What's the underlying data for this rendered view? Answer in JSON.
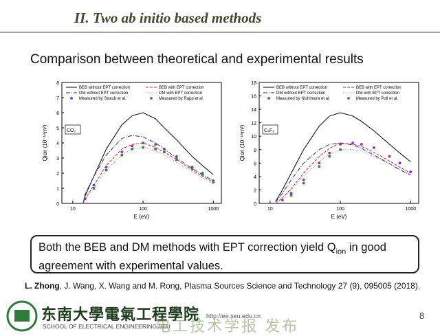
{
  "header": {
    "title": "II. Two ab initio based methods"
  },
  "subtitle": "Comparison between theoretical and experimental results",
  "chart_data": [
    {
      "type": "line",
      "ylabel": "Qion (10⁻¹⁶m²)",
      "xlabel": "E (eV)",
      "annotation": "CO₂",
      "xlim": [
        7,
        1300
      ],
      "xticks": [
        10,
        100,
        1000
      ],
      "xscale": "log",
      "ylim": [
        0,
        8
      ],
      "yticks": [
        0,
        1,
        2,
        3,
        4,
        5,
        6,
        7,
        8
      ],
      "series": [
        {
          "name": "BEB without EPT correction",
          "color": "#000000",
          "style": "solid",
          "x": [
            14,
            15,
            20,
            30,
            50,
            70,
            100,
            150,
            200,
            300,
            500,
            700,
            1000
          ],
          "values": [
            0,
            0.5,
            1.8,
            3.6,
            5.2,
            5.8,
            6.0,
            5.6,
            5.0,
            4.2,
            3.1,
            2.5,
            1.9
          ]
        },
        {
          "name": "BEB with EPT correction",
          "color": "#d62728",
          "style": "dashed",
          "x": [
            14,
            15,
            20,
            30,
            50,
            70,
            100,
            150,
            200,
            300,
            500,
            700,
            1000
          ],
          "values": [
            0,
            0.3,
            1.2,
            2.5,
            3.6,
            3.9,
            4.0,
            3.7,
            3.4,
            2.9,
            2.2,
            1.8,
            1.4
          ]
        },
        {
          "name": "DM without EPT correction",
          "color": "#1f2a7a",
          "style": "dash-dot",
          "x": [
            14,
            15,
            20,
            30,
            50,
            70,
            100,
            150,
            200,
            300,
            500,
            700,
            1000
          ],
          "values": [
            0,
            0.6,
            1.8,
            3.2,
            4.3,
            4.5,
            4.4,
            4.0,
            3.6,
            3.0,
            2.3,
            1.9,
            1.5
          ]
        },
        {
          "name": "DM with EPT correction",
          "color": "#d67ab8",
          "style": "dotted",
          "x": [
            14,
            15,
            20,
            30,
            50,
            70,
            100,
            150,
            200,
            300,
            500,
            700,
            1000
          ],
          "values": [
            0,
            0.3,
            1.0,
            2.2,
            3.2,
            3.6,
            3.7,
            3.5,
            3.2,
            2.7,
            2.1,
            1.7,
            1.3
          ]
        },
        {
          "name": "Measured by Straub et al.",
          "color": "#8a2be2",
          "style": "markers",
          "x": [
            15,
            20,
            30,
            50,
            70,
            100,
            150,
            200,
            300,
            500,
            700,
            1000
          ],
          "values": [
            0.3,
            1.2,
            2.4,
            3.4,
            3.8,
            4.0,
            3.9,
            3.6,
            3.1,
            2.4,
            2.0,
            1.5
          ]
        },
        {
          "name": "Measured by Rapp et al.",
          "color": "#2e8b2e",
          "style": "markers",
          "x": [
            20,
            30,
            50,
            70,
            100,
            150,
            200,
            300,
            500,
            700,
            1000
          ],
          "values": [
            1.0,
            2.2,
            3.2,
            3.6,
            3.7,
            3.6,
            3.4,
            2.9,
            2.3,
            1.9,
            1.4
          ]
        }
      ]
    },
    {
      "type": "line",
      "ylabel": "Qion (10⁻¹⁶m²)",
      "xlabel": "E (eV)",
      "annotation": "C₄F₈",
      "xlim": [
        7,
        1300
      ],
      "xticks": [
        10,
        100,
        1000
      ],
      "xscale": "log",
      "ylim": [
        0,
        18
      ],
      "yticks": [
        0,
        2,
        4,
        6,
        8,
        10,
        12,
        14,
        16,
        18
      ],
      "series": [
        {
          "name": "BEB without EPT correction",
          "color": "#000000",
          "style": "solid",
          "x": [
            12,
            15,
            20,
            30,
            50,
            70,
            100,
            150,
            200,
            300,
            500,
            700,
            1000
          ],
          "values": [
            0.3,
            2.0,
            4.5,
            8.0,
            11.5,
            13.0,
            13.5,
            13.0,
            12.2,
            10.8,
            8.8,
            7.5,
            6.2
          ]
        },
        {
          "name": "BEB with EPT correction",
          "color": "#d62728",
          "style": "dashed",
          "x": [
            12,
            15,
            20,
            30,
            50,
            70,
            100,
            150,
            200,
            300,
            500,
            700,
            1000
          ],
          "values": [
            0,
            0.8,
            2.2,
            4.5,
            7.0,
            8.2,
            9.0,
            8.8,
            8.5,
            7.6,
            6.3,
            5.4,
            4.5
          ]
        },
        {
          "name": "DM without EPT correction",
          "color": "#1f2a7a",
          "style": "dash-dot",
          "x": [
            12,
            15,
            20,
            30,
            50,
            70,
            100,
            150,
            200,
            300,
            500,
            700,
            1000
          ],
          "values": [
            0.2,
            1.5,
            3.5,
            6.0,
            8.0,
            8.8,
            9.0,
            8.7,
            8.2,
            7.2,
            5.9,
            5.0,
            4.2
          ]
        },
        {
          "name": "DM with EPT correction",
          "color": "#d67ab8",
          "style": "dotted",
          "x": [
            12,
            15,
            20,
            30,
            50,
            70,
            100,
            150,
            200,
            300,
            500,
            700,
            1000
          ],
          "values": [
            0,
            0.8,
            2.0,
            4.0,
            6.2,
            7.3,
            8.0,
            8.0,
            7.8,
            7.0,
            5.9,
            5.1,
            4.3
          ]
        },
        {
          "name": "Measured by Nishimura et al.",
          "color": "#8a2be2",
          "style": "markers",
          "x": [
            15,
            20,
            30,
            50,
            70,
            100,
            150,
            200,
            300,
            500,
            700,
            1000
          ],
          "values": [
            0.5,
            1.5,
            3.5,
            6.0,
            7.5,
            8.8,
            9.0,
            8.8,
            8.3,
            7.0,
            6.0,
            4.7
          ]
        },
        {
          "name": "Measured by Poll et al.",
          "color": "#2e8b2e",
          "style": "markers",
          "x": [
            20,
            30,
            50,
            70,
            100
          ],
          "values": [
            1.2,
            3.0,
            5.5,
            7.0,
            8.0
          ]
        }
      ]
    }
  ],
  "conclusion": {
    "line1": "Both the BEB and DM methods with EPT correction yield Q",
    "sub": "ion",
    "line1_end": " in good",
    "line2": "agreement with experimental values."
  },
  "citation": {
    "lead": "L. Zhong",
    "rest": ", J. Wang, X. Wang and M. Rong, Plasma Sources Science and Technology 27 (9), 095005 (2018)."
  },
  "footer": {
    "school_cn": "东南大學電氣工程學院",
    "school_en": "SCHOOL OF ELECTRICAL ENGINEERING,SEU",
    "url": "http://ee.seu.edu.cn",
    "watermark": "电工技术学报 发布",
    "page": "8"
  }
}
